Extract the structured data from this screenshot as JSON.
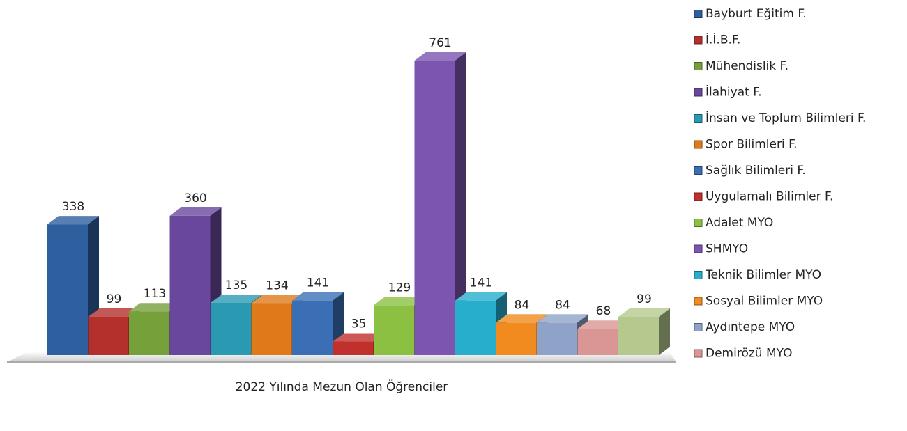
{
  "chart_data": {
    "type": "bar3d",
    "x_label": "2022 Yılında Mezun Olan Öğrenciler",
    "categories": [
      "Bayburt Eğitim F.",
      "İ.İ.B.F.",
      "Mühendislik F.",
      "İlahiyat F.",
      "İnsan ve Toplum Bilimleri F.",
      "Spor Bilimleri F.",
      "Sağlık Bilimleri F.",
      "Uygulamalı Bilimler F.",
      "Adalet MYO",
      "SHMYO",
      "Teknik Bilimler MYO",
      "Sosyal Bilimler MYO",
      "Aydıntepe MYO",
      "Demirözü MYO",
      null
    ],
    "values": [
      338,
      99,
      113,
      360,
      135,
      134,
      141,
      35,
      129,
      761,
      141,
      84,
      84,
      68,
      99
    ],
    "colors": [
      "#2e5f9e",
      "#b3302d",
      "#76a03a",
      "#69479c",
      "#2a9ab2",
      "#df7a1a",
      "#3a6fb5",
      "#c0302c",
      "#8cc043",
      "#7b55b0",
      "#27aecd",
      "#f18a1f",
      "#8fa3c9",
      "#d99694",
      "#b5c98f"
    ],
    "legend": "right"
  }
}
